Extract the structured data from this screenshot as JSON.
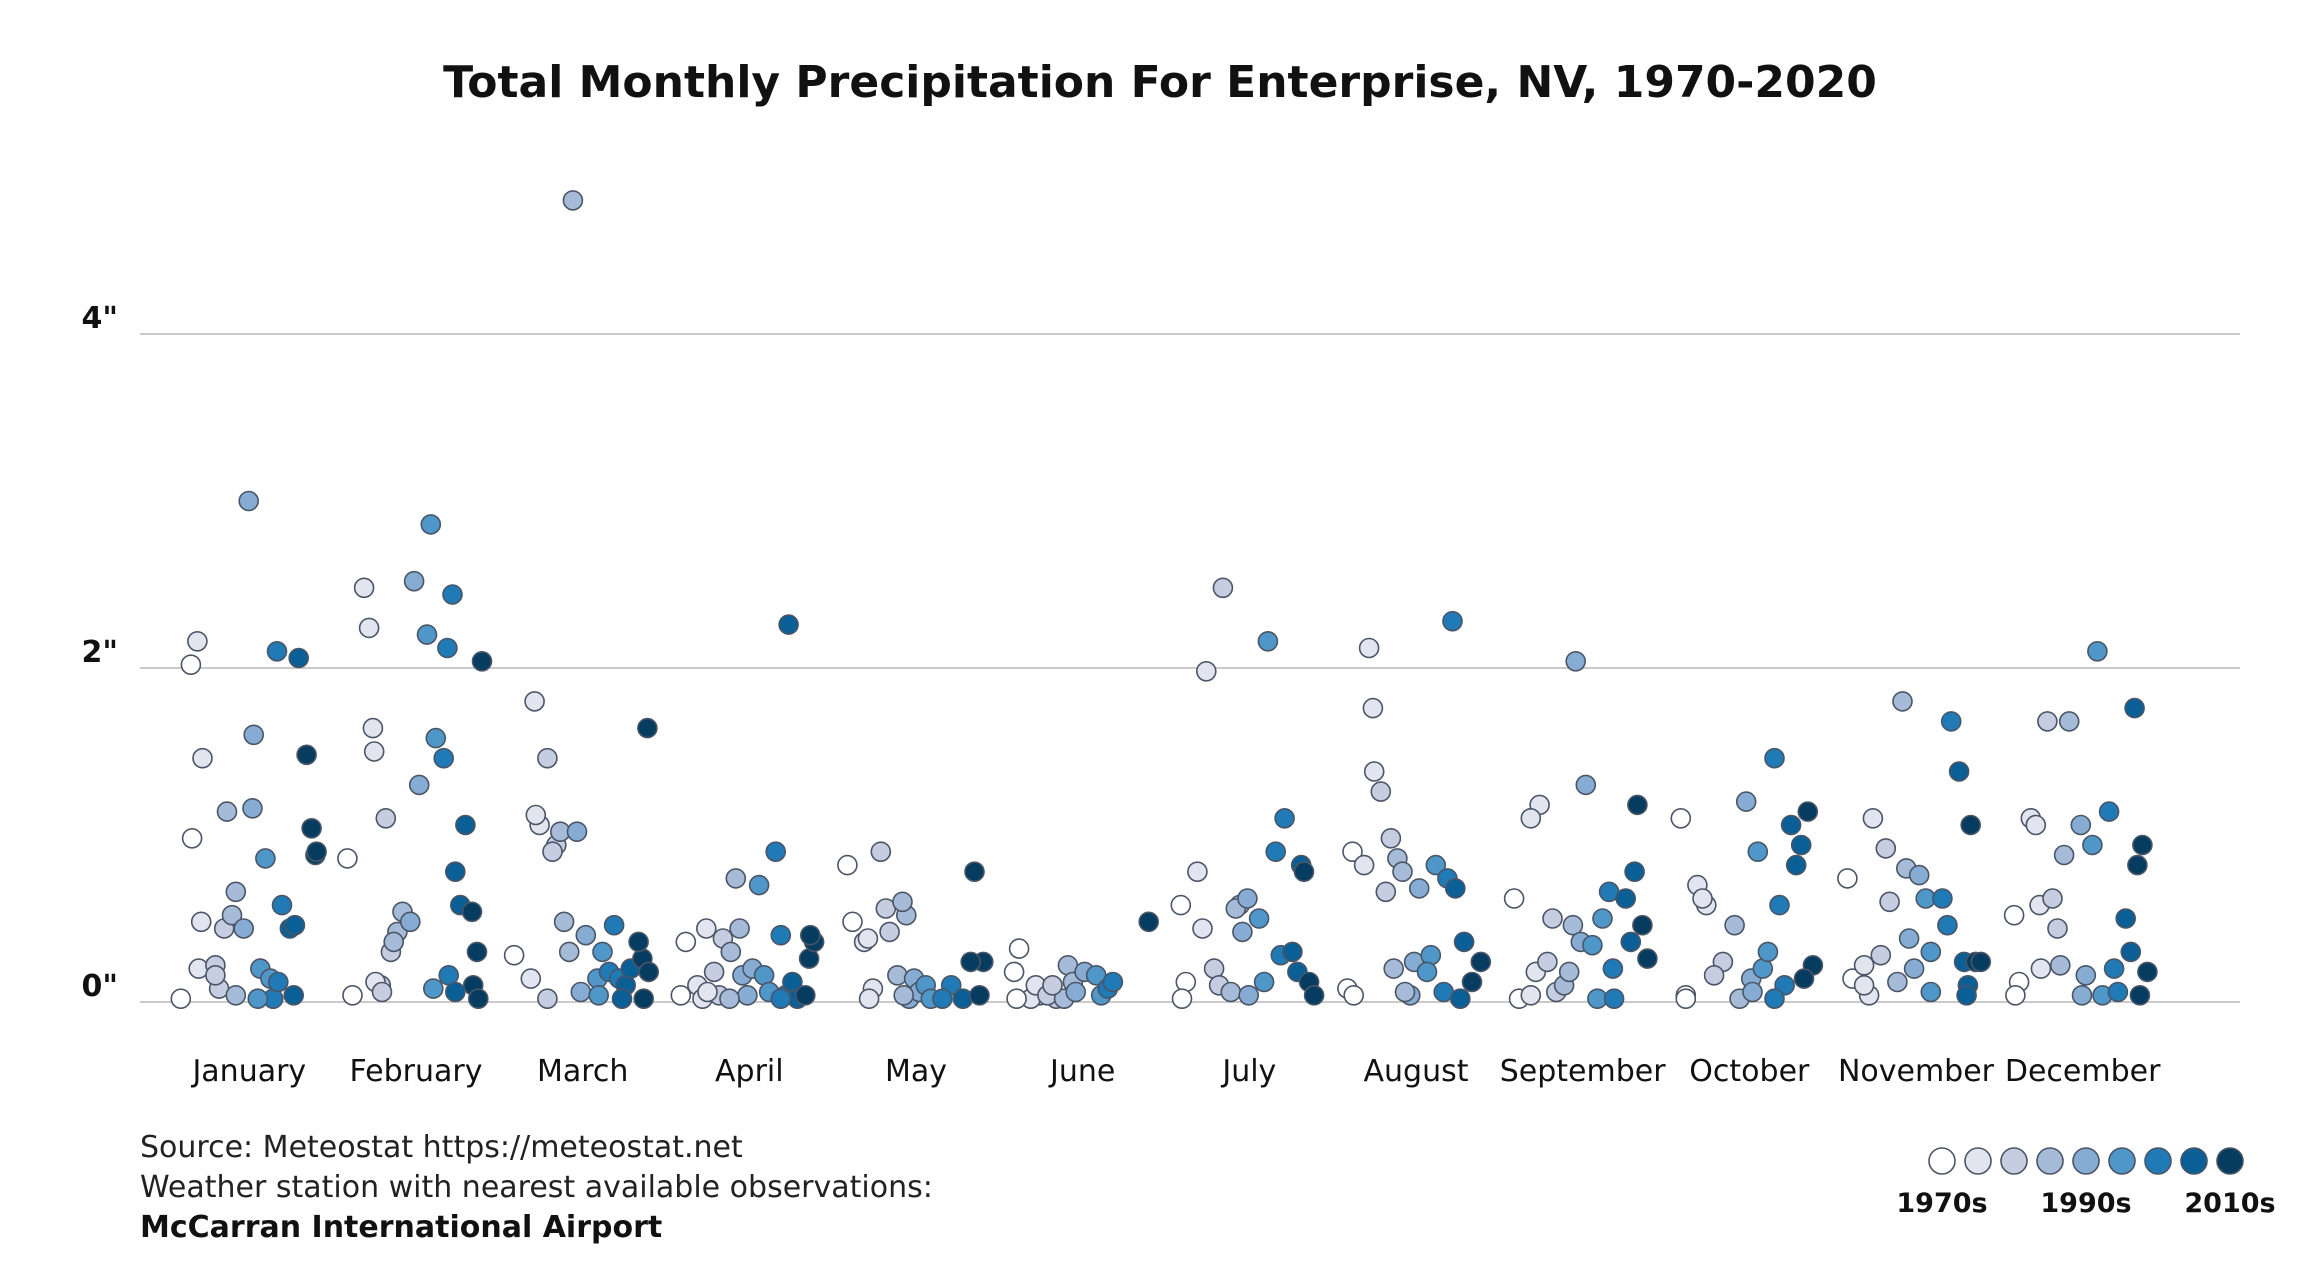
{
  "chart_data": {
    "type": "scatter",
    "title": "Total Monthly Precipitation For Enterprise, NV, 1970-2020",
    "y_ticks": [
      "0\"",
      "2\"",
      "4\""
    ],
    "ylim": [
      0,
      4.8
    ],
    "categories": [
      "January",
      "February",
      "March",
      "April",
      "May",
      "June",
      "July",
      "August",
      "September",
      "October",
      "November",
      "December"
    ],
    "decade_colors": [
      "#ffffff",
      "#e2e5f0",
      "#c6cde0",
      "#a6bbd8",
      "#86acd3",
      "#4e97c8",
      "#1f7ab6",
      "#0a5f96",
      "#053c60"
    ],
    "legend": {
      "labels": [
        "1970s",
        "1990s",
        "2010s"
      ]
    },
    "points_note": "each row: [decade_index 0-8, precipitation in inches]",
    "points": {
      "January": [
        [
          0,
          0.02
        ],
        [
          1,
          0.48
        ],
        [
          0,
          2.02
        ],
        [
          1,
          2.16
        ],
        [
          1,
          1.46
        ],
        [
          0,
          0.98
        ],
        [
          1,
          0.2
        ],
        [
          2,
          0.08
        ],
        [
          2,
          0.44
        ],
        [
          2,
          0.22
        ],
        [
          3,
          0.66
        ],
        [
          3,
          1.14
        ],
        [
          3,
          0.52
        ],
        [
          4,
          1.16
        ],
        [
          4,
          0.44
        ],
        [
          4,
          3.0
        ],
        [
          4,
          1.6
        ],
        [
          5,
          0.2
        ],
        [
          5,
          0.86
        ],
        [
          5,
          0.14
        ],
        [
          6,
          2.1
        ],
        [
          6,
          0.58
        ],
        [
          6,
          0.02
        ],
        [
          6,
          0.12
        ],
        [
          7,
          2.06
        ],
        [
          7,
          0.44
        ],
        [
          7,
          0.46
        ],
        [
          8,
          0.88
        ],
        [
          8,
          1.48
        ],
        [
          8,
          1.04
        ],
        [
          8,
          0.9
        ],
        [
          2,
          0.16
        ],
        [
          3,
          0.04
        ],
        [
          5,
          0.02
        ],
        [
          7,
          0.04
        ]
      ],
      "February": [
        [
          0,
          0.86
        ],
        [
          0,
          0.04
        ],
        [
          1,
          1.64
        ],
        [
          1,
          2.48
        ],
        [
          1,
          2.24
        ],
        [
          1,
          1.5
        ],
        [
          2,
          0.1
        ],
        [
          2,
          1.1
        ],
        [
          2,
          0.3
        ],
        [
          3,
          0.42
        ],
        [
          3,
          0.54
        ],
        [
          3,
          0.36
        ],
        [
          4,
          2.52
        ],
        [
          4,
          1.3
        ],
        [
          4,
          0.48
        ],
        [
          5,
          2.86
        ],
        [
          5,
          1.58
        ],
        [
          5,
          2.2
        ],
        [
          6,
          2.12
        ],
        [
          6,
          2.44
        ],
        [
          6,
          1.46
        ],
        [
          6,
          0.16
        ],
        [
          7,
          0.78
        ],
        [
          7,
          0.58
        ],
        [
          7,
          1.06
        ],
        [
          8,
          0.54
        ],
        [
          8,
          0.3
        ],
        [
          8,
          2.04
        ],
        [
          8,
          0.1
        ],
        [
          8,
          0.02
        ],
        [
          1,
          0.12
        ],
        [
          2,
          0.06
        ],
        [
          5,
          0.08
        ],
        [
          7,
          0.06
        ]
      ],
      "March": [
        [
          0,
          0.28
        ],
        [
          1,
          1.8
        ],
        [
          1,
          1.06
        ],
        [
          1,
          0.14
        ],
        [
          1,
          1.12
        ],
        [
          2,
          0.94
        ],
        [
          2,
          1.46
        ],
        [
          2,
          0.9
        ],
        [
          3,
          4.8
        ],
        [
          3,
          0.48
        ],
        [
          3,
          0.3
        ],
        [
          3,
          1.02
        ],
        [
          4,
          0.06
        ],
        [
          4,
          0.4
        ],
        [
          4,
          1.02
        ],
        [
          5,
          0.14
        ],
        [
          5,
          0.3
        ],
        [
          6,
          0.18
        ],
        [
          6,
          0.46
        ],
        [
          6,
          0.14
        ],
        [
          7,
          0.1
        ],
        [
          7,
          0.2
        ],
        [
          7,
          0.02
        ],
        [
          8,
          0.26
        ],
        [
          8,
          1.64
        ],
        [
          8,
          0.36
        ],
        [
          8,
          0.02
        ],
        [
          8,
          0.18
        ],
        [
          2,
          0.02
        ],
        [
          5,
          0.04
        ]
      ],
      "April": [
        [
          0,
          0.04
        ],
        [
          0,
          0.36
        ],
        [
          1,
          0.44
        ],
        [
          1,
          0.1
        ],
        [
          1,
          0.02
        ],
        [
          2,
          0.38
        ],
        [
          2,
          0.18
        ],
        [
          2,
          0.04
        ],
        [
          3,
          0.44
        ],
        [
          3,
          0.3
        ],
        [
          3,
          0.74
        ],
        [
          4,
          0.16
        ],
        [
          4,
          0.04
        ],
        [
          4,
          0.2
        ],
        [
          5,
          0.7
        ],
        [
          5,
          0.16
        ],
        [
          5,
          0.06
        ],
        [
          6,
          0.9
        ],
        [
          6,
          0.4
        ],
        [
          6,
          0.04
        ],
        [
          7,
          0.12
        ],
        [
          7,
          0.02
        ],
        [
          7,
          2.26
        ],
        [
          8,
          0.26
        ],
        [
          8,
          0.36
        ],
        [
          8,
          0.04
        ],
        [
          8,
          0.4
        ],
        [
          1,
          0.06
        ],
        [
          3,
          0.02
        ],
        [
          6,
          0.02
        ]
      ],
      "May": [
        [
          0,
          0.82
        ],
        [
          0,
          0.48
        ],
        [
          1,
          0.08
        ],
        [
          1,
          0.36
        ],
        [
          1,
          0.02
        ],
        [
          2,
          0.42
        ],
        [
          2,
          0.9
        ],
        [
          2,
          0.56
        ],
        [
          3,
          0.52
        ],
        [
          3,
          0.16
        ],
        [
          3,
          0.6
        ],
        [
          4,
          0.02
        ],
        [
          4,
          0.14
        ],
        [
          4,
          0.06
        ],
        [
          5,
          0.1
        ],
        [
          5,
          0.02
        ],
        [
          6,
          0.1
        ],
        [
          6,
          0.02
        ],
        [
          7,
          0.02
        ],
        [
          8,
          0.24
        ],
        [
          8,
          0.78
        ],
        [
          8,
          0.04
        ],
        [
          8,
          0.24
        ],
        [
          1,
          0.38
        ],
        [
          3,
          0.04
        ]
      ],
      "June": [
        [
          0,
          0.18
        ],
        [
          0,
          0.32
        ],
        [
          1,
          0.04
        ],
        [
          1,
          0.02
        ],
        [
          1,
          0.1
        ],
        [
          2,
          0.02
        ],
        [
          2,
          0.04
        ],
        [
          3,
          0.22
        ],
        [
          3,
          0.12
        ],
        [
          3,
          0.02
        ],
        [
          4,
          0.18
        ],
        [
          4,
          0.06
        ],
        [
          5,
          0.16
        ],
        [
          5,
          0.04
        ],
        [
          6,
          0.08
        ],
        [
          6,
          0.12
        ],
        [
          8,
          0.48
        ],
        [
          0,
          0.02
        ],
        [
          2,
          0.1
        ]
      ],
      "July": [
        [
          0,
          0.58
        ],
        [
          0,
          0.12
        ],
        [
          1,
          1.98
        ],
        [
          1,
          0.78
        ],
        [
          1,
          0.44
        ],
        [
          2,
          2.48
        ],
        [
          2,
          0.2
        ],
        [
          2,
          0.1
        ],
        [
          3,
          0.58
        ],
        [
          3,
          0.06
        ],
        [
          3,
          0.56
        ],
        [
          4,
          0.42
        ],
        [
          4,
          0.62
        ],
        [
          5,
          2.16
        ],
        [
          5,
          0.5
        ],
        [
          5,
          0.12
        ],
        [
          6,
          1.1
        ],
        [
          6,
          0.9
        ],
        [
          6,
          0.28
        ],
        [
          7,
          0.82
        ],
        [
          7,
          0.3
        ],
        [
          7,
          0.18
        ],
        [
          8,
          0.78
        ],
        [
          8,
          0.12
        ],
        [
          8,
          0.04
        ],
        [
          0,
          0.02
        ],
        [
          4,
          0.04
        ]
      ],
      "August": [
        [
          0,
          0.08
        ],
        [
          0,
          0.9
        ],
        [
          1,
          1.76
        ],
        [
          1,
          0.82
        ],
        [
          1,
          2.12
        ],
        [
          1,
          1.38
        ],
        [
          2,
          1.26
        ],
        [
          2,
          0.66
        ],
        [
          2,
          0.98
        ],
        [
          3,
          0.86
        ],
        [
          3,
          0.78
        ],
        [
          3,
          0.2
        ],
        [
          4,
          0.24
        ],
        [
          4,
          0.68
        ],
        [
          4,
          0.04
        ],
        [
          5,
          0.28
        ],
        [
          5,
          0.82
        ],
        [
          5,
          0.18
        ],
        [
          6,
          0.74
        ],
        [
          6,
          2.28
        ],
        [
          6,
          0.06
        ],
        [
          7,
          0.36
        ],
        [
          7,
          0.68
        ],
        [
          7,
          0.02
        ],
        [
          8,
          0.24
        ],
        [
          8,
          0.12
        ],
        [
          0,
          0.04
        ],
        [
          3,
          0.06
        ]
      ],
      "September": [
        [
          0,
          0.62
        ],
        [
          0,
          0.02
        ],
        [
          1,
          1.18
        ],
        [
          1,
          1.1
        ],
        [
          1,
          0.18
        ],
        [
          2,
          0.06
        ],
        [
          2,
          0.24
        ],
        [
          2,
          0.5
        ],
        [
          3,
          0.46
        ],
        [
          3,
          0.1
        ],
        [
          3,
          0.18
        ],
        [
          4,
          2.04
        ],
        [
          4,
          0.36
        ],
        [
          4,
          1.3
        ],
        [
          5,
          0.34
        ],
        [
          5,
          0.02
        ],
        [
          5,
          0.5
        ],
        [
          6,
          0.66
        ],
        [
          6,
          0.02
        ],
        [
          7,
          0.78
        ],
        [
          7,
          0.62
        ],
        [
          7,
          0.36
        ],
        [
          8,
          1.18
        ],
        [
          8,
          0.46
        ],
        [
          8,
          0.26
        ],
        [
          1,
          0.04
        ],
        [
          6,
          0.2
        ]
      ],
      "October": [
        [
          0,
          1.1
        ],
        [
          0,
          0.04
        ],
        [
          1,
          0.58
        ],
        [
          1,
          0.7
        ],
        [
          1,
          0.62
        ],
        [
          2,
          0.24
        ],
        [
          2,
          0.16
        ],
        [
          3,
          0.46
        ],
        [
          3,
          0.02
        ],
        [
          4,
          1.2
        ],
        [
          4,
          0.14
        ],
        [
          5,
          0.9
        ],
        [
          5,
          0.2
        ],
        [
          5,
          0.3
        ],
        [
          6,
          1.46
        ],
        [
          6,
          0.58
        ],
        [
          6,
          0.1
        ],
        [
          7,
          1.06
        ],
        [
          7,
          0.82
        ],
        [
          7,
          0.94
        ],
        [
          8,
          1.14
        ],
        [
          8,
          0.22
        ],
        [
          8,
          0.14
        ],
        [
          0,
          0.02
        ],
        [
          4,
          0.06
        ],
        [
          6,
          0.02
        ]
      ],
      "November": [
        [
          0,
          0.74
        ],
        [
          0,
          0.14
        ],
        [
          1,
          1.1
        ],
        [
          1,
          0.22
        ],
        [
          1,
          0.04
        ],
        [
          2,
          0.6
        ],
        [
          2,
          0.28
        ],
        [
          2,
          0.92
        ],
        [
          3,
          0.8
        ],
        [
          3,
          0.12
        ],
        [
          3,
          1.8
        ],
        [
          4,
          0.38
        ],
        [
          4,
          0.2
        ],
        [
          4,
          0.76
        ],
        [
          5,
          0.62
        ],
        [
          5,
          0.3
        ],
        [
          6,
          1.68
        ],
        [
          6,
          0.62
        ],
        [
          6,
          0.46
        ],
        [
          7,
          0.1
        ],
        [
          7,
          1.38
        ],
        [
          7,
          0.24
        ],
        [
          8,
          1.06
        ],
        [
          8,
          0.24
        ],
        [
          8,
          0.24
        ],
        [
          1,
          0.1
        ],
        [
          5,
          0.06
        ],
        [
          7,
          0.04
        ]
      ],
      "December": [
        [
          0,
          0.52
        ],
        [
          0,
          0.12
        ],
        [
          1,
          0.58
        ],
        [
          1,
          1.1
        ],
        [
          1,
          1.06
        ],
        [
          1,
          0.2
        ],
        [
          2,
          1.68
        ],
        [
          2,
          0.62
        ],
        [
          2,
          0.44
        ],
        [
          3,
          0.88
        ],
        [
          3,
          1.68
        ],
        [
          3,
          0.22
        ],
        [
          4,
          1.06
        ],
        [
          4,
          0.16
        ],
        [
          5,
          0.94
        ],
        [
          5,
          2.1
        ],
        [
          5,
          0.04
        ],
        [
          6,
          1.14
        ],
        [
          6,
          0.2
        ],
        [
          7,
          1.76
        ],
        [
          7,
          0.5
        ],
        [
          7,
          0.3
        ],
        [
          8,
          0.82
        ],
        [
          8,
          0.94
        ],
        [
          8,
          0.18
        ],
        [
          0,
          0.04
        ],
        [
          4,
          0.04
        ],
        [
          6,
          0.06
        ],
        [
          8,
          0.04
        ]
      ]
    }
  },
  "footer": {
    "source": "Source: Meteostat https://meteostat.net",
    "station_note": "Weather station with nearest available observations:",
    "station": "McCarran International Airport"
  }
}
